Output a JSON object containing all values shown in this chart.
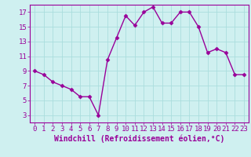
{
  "x": [
    0,
    1,
    2,
    3,
    4,
    5,
    6,
    7,
    8,
    9,
    10,
    11,
    12,
    13,
    14,
    15,
    16,
    17,
    18,
    19,
    20,
    21,
    22,
    23
  ],
  "y": [
    9,
    8.5,
    7.5,
    7,
    6.5,
    5.5,
    5.5,
    3,
    10.5,
    13.5,
    16.5,
    15.2,
    17,
    17.7,
    15.5,
    15.5,
    17,
    17,
    15,
    11.5,
    12,
    11.5,
    8.5,
    8.5
  ],
  "line_color": "#990099",
  "marker": "D",
  "marker_size": 2.5,
  "bg_color": "#cff0f0",
  "grid_color": "#aadddd",
  "xlabel": "Windchill (Refroidissement éolien,°C)",
  "ylabel": "",
  "ylim": [
    2,
    18
  ],
  "xlim": [
    -0.5,
    23.5
  ],
  "yticks": [
    3,
    5,
    7,
    9,
    11,
    13,
    15,
    17
  ],
  "xticks": [
    0,
    1,
    2,
    3,
    4,
    5,
    6,
    7,
    8,
    9,
    10,
    11,
    12,
    13,
    14,
    15,
    16,
    17,
    18,
    19,
    20,
    21,
    22,
    23
  ],
  "label_color": "#990099",
  "tick_color": "#990099",
  "border_color": "#990099",
  "xlabel_fontsize": 7,
  "tick_fontsize": 6.5,
  "linewidth": 1.0
}
